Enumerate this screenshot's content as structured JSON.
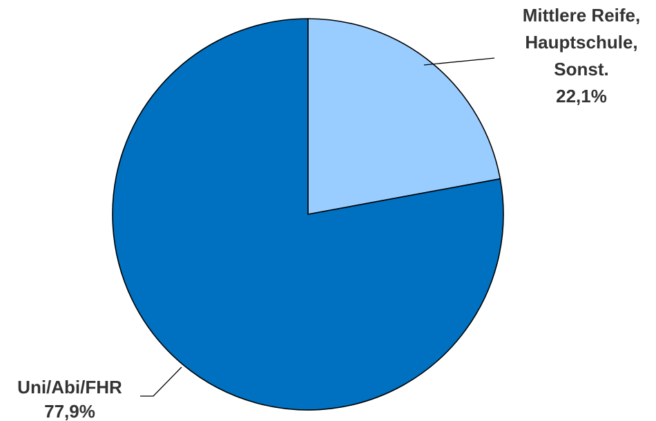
{
  "chart_data": {
    "type": "pie",
    "title": "",
    "slices": [
      {
        "label_lines": [
          "Mittlere Reife,",
          "Hauptschule,",
          "Sonst."
        ],
        "value_label": "22,1%",
        "value": 22.1,
        "color": "#99ccff"
      },
      {
        "label_lines": [
          "Uni/Abi/FHR"
        ],
        "value_label": "77,9%",
        "value": 77.9,
        "color": "#0070c0"
      }
    ],
    "start_angle": "12 o'clock, clockwise",
    "legend": "none"
  }
}
